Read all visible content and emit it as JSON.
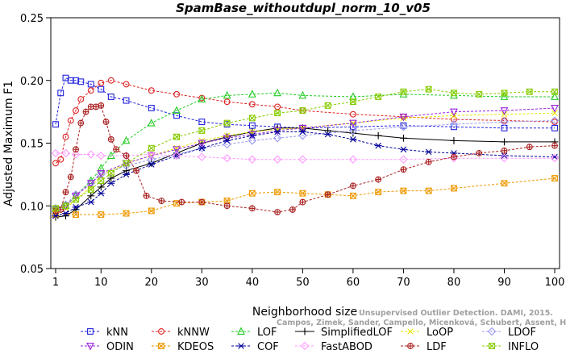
{
  "chart_data": {
    "type": "line",
    "title": "SpamBase_withoutdupl_norm_10_v05",
    "xlabel": "Neighborhood size",
    "ylabel": "Adjusted Maximum F1",
    "xlim": [
      1,
      100
    ],
    "ylim": [
      0.05,
      0.25
    ],
    "xticks": [
      1,
      10,
      20,
      30,
      40,
      50,
      60,
      70,
      80,
      90,
      100
    ],
    "yticks": [
      0.05,
      0.1,
      0.15,
      0.2,
      0.25
    ],
    "ytick_labels": [
      "0.05",
      "0.10",
      "0.15",
      "0.20",
      "0.25"
    ],
    "grid": false,
    "legend_position": "bottom",
    "watermark": [
      "Campos, Zimek, Sander, Campello, Micenková, Schubert, Assent, Houle",
      "Unsupervised Outlier Detection. DAMI, 2015."
    ],
    "series": [
      {
        "name": "kNN",
        "color": "#2222dd",
        "marker": "square",
        "dash": "3,2",
        "points": [
          [
            1,
            0.165
          ],
          [
            2,
            0.19
          ],
          [
            3,
            0.202
          ],
          [
            4,
            0.2
          ],
          [
            5,
            0.2
          ],
          [
            6,
            0.199
          ],
          [
            8,
            0.197
          ],
          [
            10,
            0.193
          ],
          [
            12,
            0.187
          ],
          [
            15,
            0.184
          ],
          [
            20,
            0.178
          ],
          [
            25,
            0.172
          ],
          [
            30,
            0.167
          ],
          [
            35,
            0.165
          ],
          [
            40,
            0.164
          ],
          [
            45,
            0.163
          ],
          [
            50,
            0.162
          ],
          [
            60,
            0.163
          ],
          [
            70,
            0.164
          ],
          [
            80,
            0.163
          ],
          [
            90,
            0.162
          ],
          [
            100,
            0.162
          ]
        ]
      },
      {
        "name": "kNNW",
        "color": "#dd2222",
        "marker": "circle",
        "dash": "3,2",
        "points": [
          [
            1,
            0.134
          ],
          [
            2,
            0.137
          ],
          [
            3,
            0.155
          ],
          [
            4,
            0.168
          ],
          [
            5,
            0.176
          ],
          [
            6,
            0.185
          ],
          [
            8,
            0.192
          ],
          [
            10,
            0.198
          ],
          [
            12,
            0.2
          ],
          [
            15,
            0.197
          ],
          [
            20,
            0.192
          ],
          [
            25,
            0.189
          ],
          [
            30,
            0.186
          ],
          [
            35,
            0.183
          ],
          [
            40,
            0.181
          ],
          [
            45,
            0.179
          ],
          [
            50,
            0.176
          ],
          [
            60,
            0.173
          ],
          [
            70,
            0.171
          ],
          [
            80,
            0.169
          ],
          [
            90,
            0.168
          ],
          [
            100,
            0.167
          ]
        ]
      },
      {
        "name": "LOF",
        "color": "#22cc22",
        "marker": "triangle",
        "dash": "3,2",
        "points": [
          [
            1,
            0.098
          ],
          [
            3,
            0.1
          ],
          [
            5,
            0.108
          ],
          [
            8,
            0.12
          ],
          [
            10,
            0.13
          ],
          [
            12,
            0.14
          ],
          [
            15,
            0.152
          ],
          [
            20,
            0.166
          ],
          [
            25,
            0.176
          ],
          [
            30,
            0.185
          ],
          [
            35,
            0.188
          ],
          [
            40,
            0.189
          ],
          [
            45,
            0.19
          ],
          [
            50,
            0.188
          ],
          [
            60,
            0.187
          ],
          [
            70,
            0.189
          ],
          [
            80,
            0.188
          ],
          [
            90,
            0.187
          ],
          [
            100,
            0.187
          ]
        ]
      },
      {
        "name": "SimplifiedLOF",
        "color": "#000000",
        "marker": "plus",
        "dash": "",
        "points": [
          [
            1,
            0.091
          ],
          [
            3,
            0.092
          ],
          [
            5,
            0.097
          ],
          [
            8,
            0.108
          ],
          [
            10,
            0.115
          ],
          [
            12,
            0.122
          ],
          [
            15,
            0.128
          ],
          [
            20,
            0.134
          ],
          [
            25,
            0.142
          ],
          [
            30,
            0.15
          ],
          [
            35,
            0.155
          ],
          [
            40,
            0.159
          ],
          [
            45,
            0.162
          ],
          [
            50,
            0.162
          ],
          [
            55,
            0.16
          ],
          [
            60,
            0.158
          ],
          [
            65,
            0.156
          ],
          [
            70,
            0.154
          ],
          [
            80,
            0.152
          ],
          [
            90,
            0.151
          ],
          [
            100,
            0.151
          ]
        ]
      },
      {
        "name": "LoOP",
        "color": "#e6e600",
        "marker": "cross",
        "dash": "3,2",
        "points": [
          [
            1,
            0.096
          ],
          [
            3,
            0.098
          ],
          [
            5,
            0.105
          ],
          [
            8,
            0.115
          ],
          [
            10,
            0.124
          ],
          [
            15,
            0.134
          ],
          [
            20,
            0.14
          ],
          [
            25,
            0.146
          ],
          [
            30,
            0.152
          ],
          [
            35,
            0.156
          ],
          [
            40,
            0.159
          ],
          [
            45,
            0.161
          ],
          [
            50,
            0.162
          ],
          [
            60,
            0.166
          ],
          [
            70,
            0.17
          ],
          [
            80,
            0.172
          ],
          [
            90,
            0.173
          ],
          [
            100,
            0.174
          ]
        ]
      },
      {
        "name": "LDOF",
        "color": "#9999ee",
        "marker": "diamond",
        "dash": "3,2",
        "points": [
          [
            1,
            0.098
          ],
          [
            3,
            0.101
          ],
          [
            5,
            0.109
          ],
          [
            8,
            0.118
          ],
          [
            10,
            0.125
          ],
          [
            15,
            0.132
          ],
          [
            20,
            0.137
          ],
          [
            25,
            0.141
          ],
          [
            30,
            0.146
          ],
          [
            35,
            0.149
          ],
          [
            40,
            0.152
          ],
          [
            45,
            0.154
          ],
          [
            50,
            0.156
          ],
          [
            60,
            0.16
          ],
          [
            70,
            0.163
          ],
          [
            80,
            0.165
          ],
          [
            90,
            0.167
          ],
          [
            100,
            0.168
          ]
        ]
      },
      {
        "name": "ODIN",
        "color": "#9922dd",
        "marker": "triangle-down",
        "dash": "3,2",
        "points": [
          [
            1,
            0.097
          ],
          [
            3,
            0.1
          ],
          [
            5,
            0.108
          ],
          [
            8,
            0.118
          ],
          [
            10,
            0.126
          ],
          [
            15,
            0.134
          ],
          [
            20,
            0.14
          ],
          [
            25,
            0.145
          ],
          [
            30,
            0.15
          ],
          [
            35,
            0.154
          ],
          [
            40,
            0.157
          ],
          [
            45,
            0.16
          ],
          [
            50,
            0.162
          ],
          [
            60,
            0.166
          ],
          [
            70,
            0.171
          ],
          [
            80,
            0.175
          ],
          [
            90,
            0.176
          ],
          [
            100,
            0.178
          ]
        ]
      },
      {
        "name": "KDEOS",
        "color": "#ee9900",
        "marker": "xsquare",
        "dash": "3,2",
        "points": [
          [
            1,
            0.093
          ],
          [
            5,
            0.093
          ],
          [
            10,
            0.093
          ],
          [
            15,
            0.094
          ],
          [
            20,
            0.096
          ],
          [
            25,
            0.102
          ],
          [
            30,
            0.103
          ],
          [
            35,
            0.104
          ],
          [
            40,
            0.11
          ],
          [
            45,
            0.111
          ],
          [
            50,
            0.11
          ],
          [
            55,
            0.109
          ],
          [
            60,
            0.108
          ],
          [
            65,
            0.111
          ],
          [
            70,
            0.112
          ],
          [
            75,
            0.112
          ],
          [
            80,
            0.114
          ],
          [
            90,
            0.118
          ],
          [
            100,
            0.122
          ]
        ]
      },
      {
        "name": "COF",
        "color": "#000099",
        "marker": "asterisk",
        "dash": "3,2",
        "points": [
          [
            1,
            0.092
          ],
          [
            3,
            0.094
          ],
          [
            5,
            0.099
          ],
          [
            8,
            0.103
          ],
          [
            10,
            0.11
          ],
          [
            12,
            0.118
          ],
          [
            15,
            0.125
          ],
          [
            20,
            0.133
          ],
          [
            25,
            0.14
          ],
          [
            30,
            0.146
          ],
          [
            35,
            0.152
          ],
          [
            40,
            0.156
          ],
          [
            45,
            0.159
          ],
          [
            50,
            0.159
          ],
          [
            55,
            0.157
          ],
          [
            60,
            0.153
          ],
          [
            65,
            0.148
          ],
          [
            70,
            0.145
          ],
          [
            75,
            0.143
          ],
          [
            80,
            0.142
          ],
          [
            90,
            0.14
          ],
          [
            100,
            0.139
          ]
        ]
      },
      {
        "name": "FastABOD",
        "color": "#ff99ff",
        "marker": "diamond",
        "dash": "3,2",
        "points": [
          [
            1,
            0.142
          ],
          [
            3,
            0.142
          ],
          [
            5,
            0.141
          ],
          [
            8,
            0.141
          ],
          [
            10,
            0.14
          ],
          [
            15,
            0.14
          ],
          [
            20,
            0.141
          ],
          [
            25,
            0.14
          ],
          [
            30,
            0.139
          ],
          [
            35,
            0.138
          ],
          [
            40,
            0.137
          ],
          [
            45,
            0.137
          ],
          [
            50,
            0.137
          ],
          [
            60,
            0.137
          ],
          [
            70,
            0.137
          ],
          [
            80,
            0.138
          ],
          [
            90,
            0.138
          ],
          [
            100,
            0.138
          ]
        ]
      },
      {
        "name": "LDF",
        "color": "#aa2222",
        "marker": "circleplus",
        "dash": "3,2",
        "points": [
          [
            1,
            0.096
          ],
          [
            2,
            0.097
          ],
          [
            3,
            0.111
          ],
          [
            4,
            0.123
          ],
          [
            5,
            0.145
          ],
          [
            6,
            0.166
          ],
          [
            7,
            0.175
          ],
          [
            8,
            0.179
          ],
          [
            9,
            0.179
          ],
          [
            10,
            0.18
          ],
          [
            11,
            0.167
          ],
          [
            12,
            0.153
          ],
          [
            13,
            0.145
          ],
          [
            15,
            0.14
          ],
          [
            17,
            0.128
          ],
          [
            19,
            0.108
          ],
          [
            22,
            0.104
          ],
          [
            26,
            0.103
          ],
          [
            30,
            0.103
          ],
          [
            35,
            0.1
          ],
          [
            40,
            0.098
          ],
          [
            45,
            0.095
          ],
          [
            48,
            0.097
          ],
          [
            50,
            0.103
          ],
          [
            55,
            0.109
          ],
          [
            60,
            0.116
          ],
          [
            65,
            0.121
          ],
          [
            70,
            0.129
          ],
          [
            75,
            0.135
          ],
          [
            80,
            0.139
          ],
          [
            85,
            0.142
          ],
          [
            90,
            0.144
          ],
          [
            95,
            0.147
          ],
          [
            100,
            0.148
          ]
        ]
      },
      {
        "name": "INFLO",
        "color": "#88cc00",
        "marker": "xsquare",
        "dash": "3,2",
        "points": [
          [
            1,
            0.098
          ],
          [
            3,
            0.1
          ],
          [
            5,
            0.105
          ],
          [
            8,
            0.113
          ],
          [
            10,
            0.12
          ],
          [
            12,
            0.126
          ],
          [
            15,
            0.134
          ],
          [
            20,
            0.146
          ],
          [
            25,
            0.155
          ],
          [
            30,
            0.16
          ],
          [
            35,
            0.166
          ],
          [
            40,
            0.17
          ],
          [
            45,
            0.174
          ],
          [
            50,
            0.176
          ],
          [
            55,
            0.18
          ],
          [
            60,
            0.183
          ],
          [
            65,
            0.187
          ],
          [
            70,
            0.191
          ],
          [
            75,
            0.193
          ],
          [
            80,
            0.19
          ],
          [
            85,
            0.189
          ],
          [
            90,
            0.19
          ],
          [
            95,
            0.191
          ],
          [
            100,
            0.191
          ]
        ]
      }
    ]
  }
}
